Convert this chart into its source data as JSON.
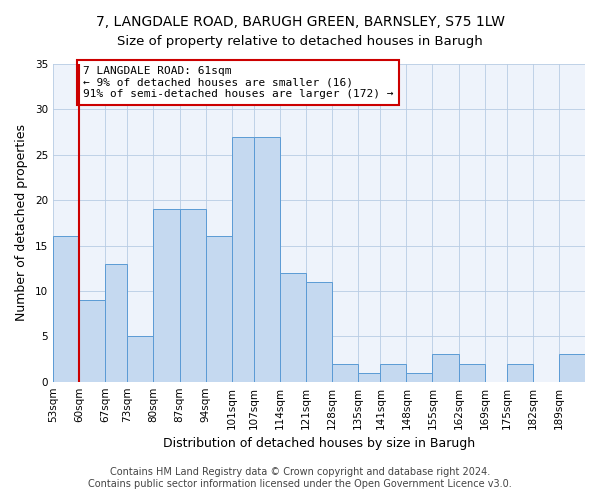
{
  "title": "7, LANGDALE ROAD, BARUGH GREEN, BARNSLEY, S75 1LW",
  "subtitle": "Size of property relative to detached houses in Barugh",
  "xlabel": "Distribution of detached houses by size in Barugh",
  "ylabel": "Number of detached properties",
  "bin_labels": [
    "53sqm",
    "60sqm",
    "67sqm",
    "73sqm",
    "80sqm",
    "87sqm",
    "94sqm",
    "101sqm",
    "107sqm",
    "114sqm",
    "121sqm",
    "128sqm",
    "135sqm",
    "141sqm",
    "148sqm",
    "155sqm",
    "162sqm",
    "169sqm",
    "175sqm",
    "182sqm",
    "189sqm"
  ],
  "bin_edges": [
    53,
    60,
    67,
    73,
    80,
    87,
    94,
    101,
    107,
    114,
    121,
    128,
    135,
    141,
    148,
    155,
    162,
    169,
    175,
    182,
    189,
    196
  ],
  "values": [
    16,
    9,
    13,
    5,
    19,
    19,
    16,
    27,
    27,
    12,
    11,
    2,
    1,
    2,
    1,
    3,
    2,
    0,
    2,
    0,
    3
  ],
  "bar_color": "#c5d9f0",
  "bar_edge_color": "#5b9bd5",
  "vline_value": 60,
  "vline_color": "#cc0000",
  "annotation_text": "7 LANGDALE ROAD: 61sqm\n← 9% of detached houses are smaller (16)\n91% of semi-detached houses are larger (172) →",
  "annotation_box_edgecolor": "#cc0000",
  "annotation_box_facecolor": "#ffffff",
  "ylim": [
    0,
    35
  ],
  "yticks": [
    0,
    5,
    10,
    15,
    20,
    25,
    30,
    35
  ],
  "footer1": "Contains HM Land Registry data © Crown copyright and database right 2024.",
  "footer2": "Contains public sector information licensed under the Open Government Licence v3.0.",
  "title_fontsize": 10,
  "label_fontsize": 9,
  "tick_fontsize": 7.5,
  "footer_fontsize": 7,
  "annotation_fontsize": 8
}
